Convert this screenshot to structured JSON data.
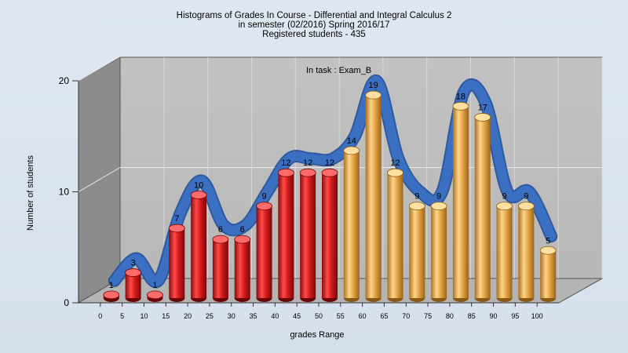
{
  "chart_data": {
    "type": "bar",
    "title_lines": [
      "Histograms of Grades  In Course - Differential and Integral Calculus 2",
      "in semester  (02/2016) Spring 2016/17",
      "Registered students - 435"
    ],
    "annotation": "In task : Exam_B",
    "xlabel": "grades Range",
    "ylabel": "Number of students",
    "x_tick_labels": [
      "0",
      "5",
      "10",
      "15",
      "20",
      "25",
      "30",
      "35",
      "40",
      "45",
      "50",
      "55",
      "60",
      "65",
      "70",
      "75",
      "80",
      "85",
      "90",
      "95",
      "100"
    ],
    "y_ticks": [
      0,
      10,
      20
    ],
    "ylim": [
      0,
      20
    ],
    "values": [
      1,
      3,
      1,
      7,
      10,
      6,
      6,
      9,
      12,
      12,
      12,
      14,
      19,
      12,
      9,
      9,
      18,
      17,
      9,
      9,
      5
    ],
    "bar_colors": [
      "#d61c1c",
      "#d61c1c",
      "#d61c1c",
      "#d61c1c",
      "#d61c1c",
      "#d61c1c",
      "#d61c1c",
      "#d61c1c",
      "#d61c1c",
      "#d61c1c",
      "#d61c1c",
      "#e8a84a",
      "#e8a84a",
      "#e8a84a",
      "#e8a84a",
      "#e8a84a",
      "#e8a84a",
      "#e8a84a",
      "#e8a84a",
      "#e8a84a",
      "#e8a84a"
    ],
    "trend_color": "#3a6fc2",
    "grid": true,
    "legend": "none"
  }
}
